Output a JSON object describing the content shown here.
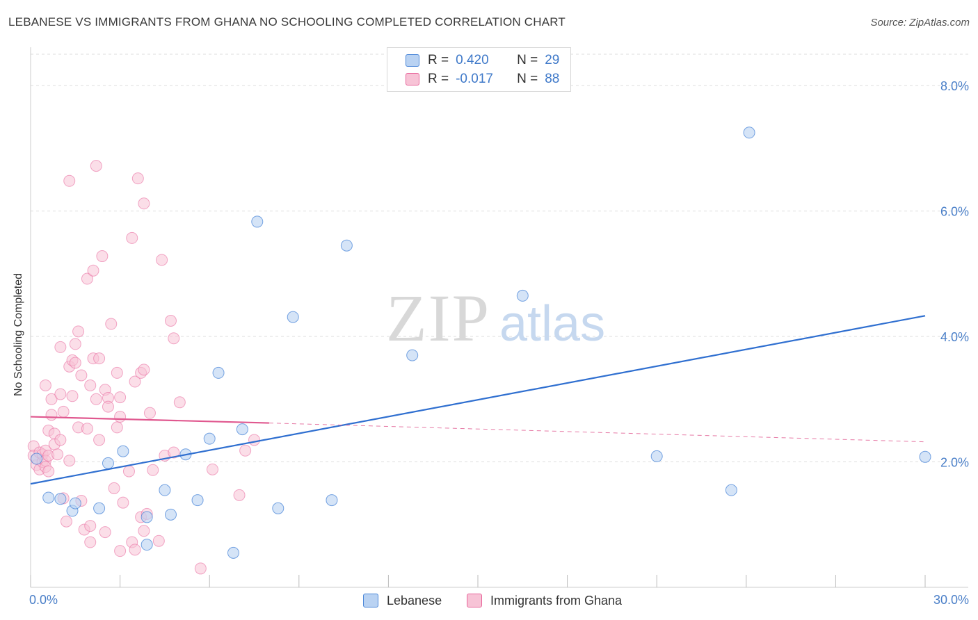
{
  "title": "LEBANESE VS IMMIGRANTS FROM GHANA NO SCHOOLING COMPLETED CORRELATION CHART",
  "source": "Source: ZipAtlas.com",
  "colors": {
    "blue": "#4a86d8",
    "blue_fill": "#b9d2f2",
    "pink": "#e8649a",
    "pink_fill": "#f7c3d6",
    "tick_text": "#4a7fc8",
    "grid": "#dddddd"
  },
  "legend": {
    "r_label": "R =",
    "n_label": "N =",
    "rows": [
      {
        "r": "0.420",
        "n": "29"
      },
      {
        "r": "-0.017",
        "n": "88"
      }
    ]
  },
  "watermark": {
    "zip": "ZIP",
    "atlas": "atlas"
  },
  "chart_data": {
    "type": "scatter",
    "title": "LEBANESE VS IMMIGRANTS FROM GHANA NO SCHOOLING COMPLETED CORRELATION CHART",
    "xlabel": "",
    "ylabel": "No Schooling Completed",
    "xlim": [
      0,
      30
    ],
    "ylim": [
      0,
      8.5
    ],
    "x_ticks": [
      0,
      3,
      6,
      9,
      12,
      15,
      18,
      21,
      24,
      27,
      30
    ],
    "x_tick_labels_shown": {
      "0": "0.0%",
      "30": "30.0%"
    },
    "y_ticks": [
      2,
      4,
      6,
      8
    ],
    "y_tick_labels": [
      "2.0%",
      "4.0%",
      "6.0%",
      "8.0%"
    ],
    "grid": true,
    "legend_position": "top-center",
    "series": [
      {
        "name": "Lebanese",
        "r": 0.42,
        "n": 29,
        "trend": {
          "x0": 0,
          "y0": 1.65,
          "x1": 30,
          "y1": 4.33
        },
        "points": [
          [
            0.6,
            1.43
          ],
          [
            1.0,
            1.41
          ],
          [
            1.4,
            1.22
          ],
          [
            1.5,
            1.34
          ],
          [
            2.3,
            1.26
          ],
          [
            2.6,
            1.98
          ],
          [
            3.1,
            2.17
          ],
          [
            3.9,
            0.68
          ],
          [
            3.9,
            1.12
          ],
          [
            4.5,
            1.55
          ],
          [
            4.7,
            1.16
          ],
          [
            5.2,
            2.12
          ],
          [
            5.6,
            1.39
          ],
          [
            6.0,
            2.37
          ],
          [
            6.3,
            3.42
          ],
          [
            6.8,
            0.55
          ],
          [
            7.1,
            2.52
          ],
          [
            7.6,
            5.83
          ],
          [
            8.3,
            1.26
          ],
          [
            8.8,
            4.31
          ],
          [
            10.1,
            1.39
          ],
          [
            10.6,
            5.45
          ],
          [
            12.8,
            3.7
          ],
          [
            16.5,
            4.65
          ],
          [
            21.0,
            2.09
          ],
          [
            23.5,
            1.55
          ],
          [
            24.1,
            7.25
          ],
          [
            30.0,
            2.08
          ],
          [
            0.2,
            2.05
          ]
        ]
      },
      {
        "name": "Immigrants from Ghana",
        "r": -0.017,
        "n": 88,
        "trend": {
          "x0": 0,
          "y0": 2.72,
          "x1": 8.0,
          "y1": 2.62,
          "dash_x1": 30,
          "dash_y1": 2.32
        },
        "points": [
          [
            0.1,
            2.25
          ],
          [
            0.1,
            2.1
          ],
          [
            0.2,
            1.95
          ],
          [
            0.2,
            2.05
          ],
          [
            0.3,
            2.15
          ],
          [
            0.3,
            1.88
          ],
          [
            0.4,
            2.0
          ],
          [
            0.4,
            2.12
          ],
          [
            0.5,
            2.18
          ],
          [
            0.5,
            2.02
          ],
          [
            0.5,
            1.92
          ],
          [
            0.6,
            2.1
          ],
          [
            0.6,
            1.85
          ],
          [
            0.5,
            3.22
          ],
          [
            0.6,
            2.5
          ],
          [
            0.7,
            3.0
          ],
          [
            0.7,
            2.75
          ],
          [
            0.8,
            2.45
          ],
          [
            0.8,
            2.28
          ],
          [
            0.9,
            2.12
          ],
          [
            1.0,
            2.35
          ],
          [
            1.0,
            3.08
          ],
          [
            1.0,
            3.83
          ],
          [
            1.1,
            2.8
          ],
          [
            1.1,
            1.42
          ],
          [
            1.2,
            1.05
          ],
          [
            1.3,
            2.02
          ],
          [
            1.3,
            3.52
          ],
          [
            1.3,
            6.48
          ],
          [
            1.4,
            3.62
          ],
          [
            1.4,
            3.05
          ],
          [
            1.5,
            3.58
          ],
          [
            1.5,
            3.88
          ],
          [
            1.6,
            2.55
          ],
          [
            1.6,
            4.08
          ],
          [
            1.7,
            3.38
          ],
          [
            1.7,
            1.38
          ],
          [
            1.8,
            0.92
          ],
          [
            1.9,
            2.53
          ],
          [
            1.9,
            4.92
          ],
          [
            2.0,
            0.98
          ],
          [
            2.0,
            3.22
          ],
          [
            2.0,
            0.72
          ],
          [
            2.1,
            5.05
          ],
          [
            2.1,
            3.65
          ],
          [
            2.2,
            3.0
          ],
          [
            2.2,
            6.72
          ],
          [
            2.3,
            3.65
          ],
          [
            2.3,
            2.35
          ],
          [
            2.4,
            5.28
          ],
          [
            2.5,
            3.15
          ],
          [
            2.5,
            0.88
          ],
          [
            2.6,
            3.02
          ],
          [
            2.6,
            2.88
          ],
          [
            2.7,
            4.2
          ],
          [
            2.8,
            1.58
          ],
          [
            2.9,
            2.55
          ],
          [
            2.9,
            3.42
          ],
          [
            3.0,
            0.58
          ],
          [
            3.0,
            2.72
          ],
          [
            3.0,
            3.03
          ],
          [
            3.1,
            1.35
          ],
          [
            3.3,
            1.85
          ],
          [
            3.4,
            0.72
          ],
          [
            3.4,
            5.57
          ],
          [
            3.5,
            3.28
          ],
          [
            3.5,
            0.6
          ],
          [
            3.6,
            6.52
          ],
          [
            3.7,
            1.12
          ],
          [
            3.7,
            3.42
          ],
          [
            3.8,
            6.12
          ],
          [
            3.8,
            3.47
          ],
          [
            3.8,
            0.9
          ],
          [
            3.9,
            1.17
          ],
          [
            4.0,
            2.78
          ],
          [
            4.1,
            1.87
          ],
          [
            4.3,
            0.74
          ],
          [
            4.4,
            5.22
          ],
          [
            4.5,
            2.1
          ],
          [
            4.7,
            4.25
          ],
          [
            4.8,
            2.15
          ],
          [
            4.8,
            3.97
          ],
          [
            5.0,
            2.95
          ],
          [
            5.7,
            0.3
          ],
          [
            6.1,
            1.88
          ],
          [
            7.0,
            1.47
          ],
          [
            7.2,
            2.18
          ],
          [
            7.5,
            2.35
          ]
        ]
      }
    ]
  },
  "bottom_legend": [
    {
      "label": "Lebanese"
    },
    {
      "label": "Immigrants from Ghana"
    }
  ]
}
